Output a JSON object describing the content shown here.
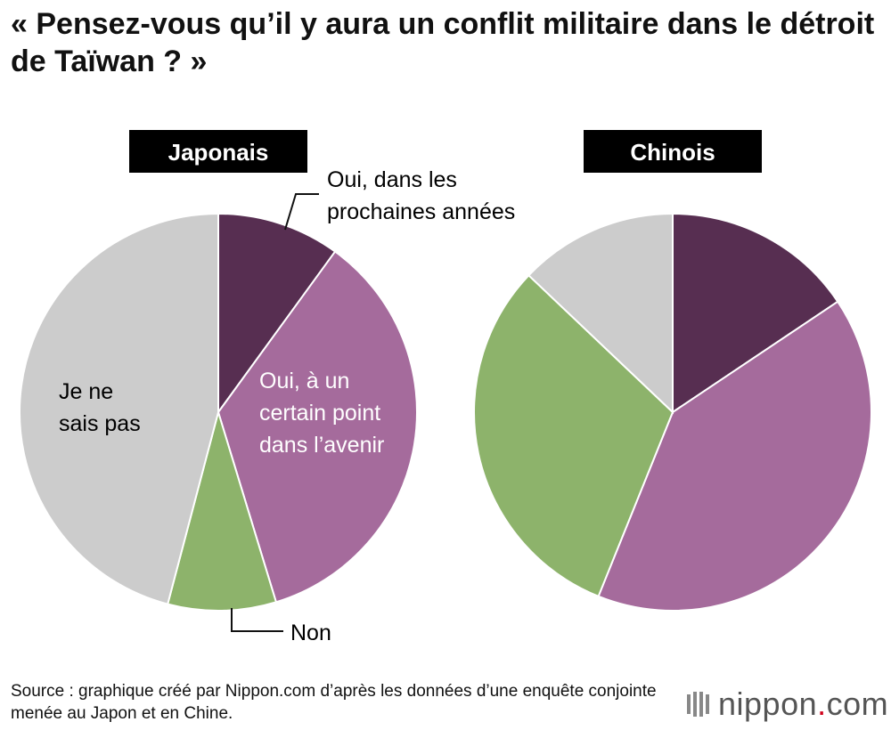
{
  "title": "« Pensez-vous qu’il y aura un conflit militaire dans le détroit de Taïwan ? »",
  "source": "Source : graphique créé par Nippon.com d’après les données d’une enquête conjointe menée au Japon et en Chine.",
  "logo": {
    "name": "nippon",
    "dot": ".",
    "suffix": "com"
  },
  "colors": {
    "oui_prochaines": "#572e51",
    "oui_avenir": "#a56b9c",
    "non": "#8db36b",
    "ne_sais_pas": "#cccccc"
  },
  "chart_data": [
    {
      "type": "pie",
      "title": "Japonais",
      "categories": [
        "Oui, dans les prochaines années",
        "Oui, à un certain point dans l’avenir",
        "Non",
        "Je ne sais pas"
      ],
      "values": [
        10.0,
        35.3,
        8.8,
        45.9
      ],
      "label_lines": [
        [
          "Oui, dans les",
          "prochaines années"
        ],
        [
          "Oui, à un",
          "certain point",
          "dans l’avenir"
        ],
        [
          "Non"
        ],
        [
          "Je ne",
          "sais pas"
        ]
      ]
    },
    {
      "type": "pie",
      "title": "Chinois",
      "categories": [
        "Oui, dans les prochaines années",
        "Oui, à un certain point dans l’avenir",
        "Non",
        "Je ne sais pas"
      ],
      "values": [
        15.6,
        40.5,
        31.0,
        12.9
      ]
    }
  ]
}
